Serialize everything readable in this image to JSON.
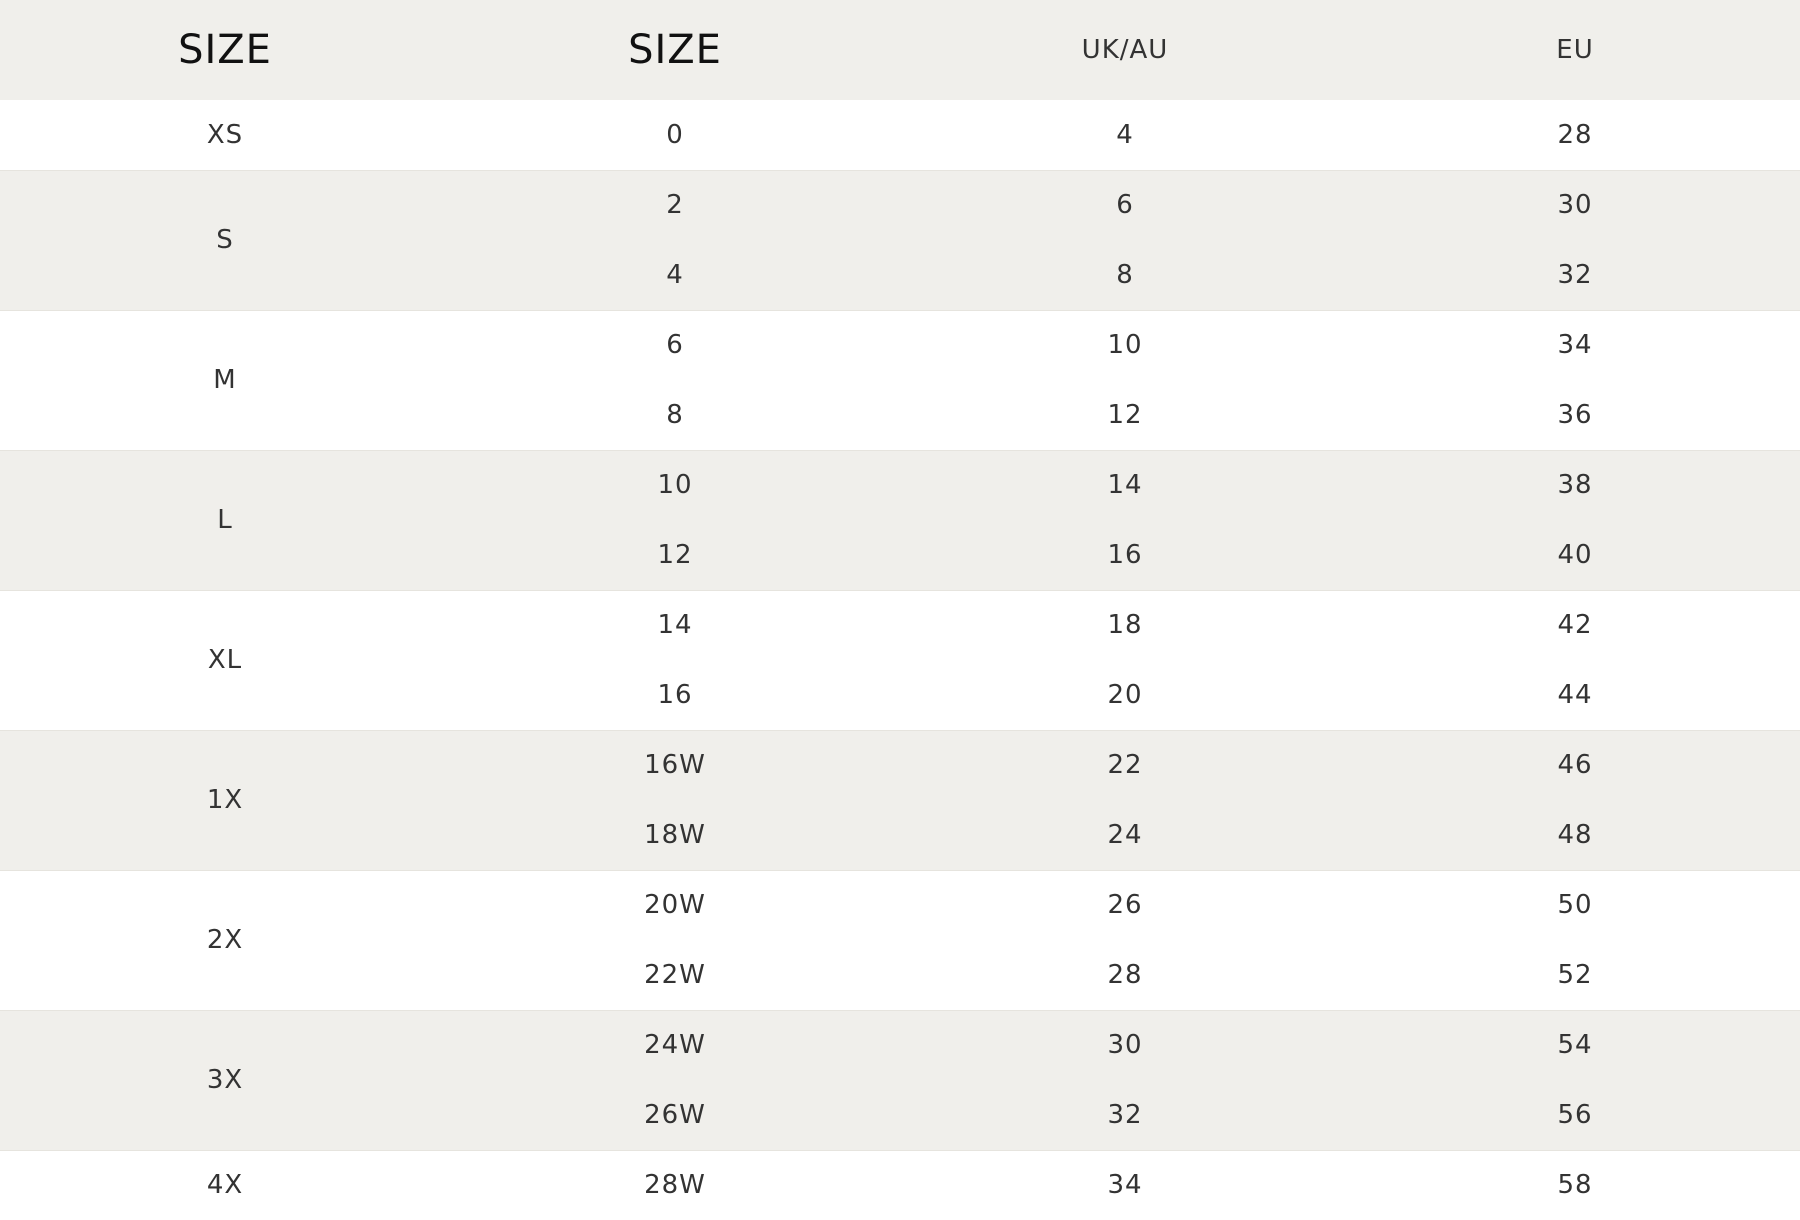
{
  "headers": [
    "SIZE",
    "SIZE",
    "UK/AU",
    "EU"
  ],
  "groups": [
    {
      "size": "XS",
      "rows": [
        [
          "0",
          "4",
          "28"
        ]
      ]
    },
    {
      "size": "S",
      "rows": [
        [
          "2",
          "6",
          "30"
        ],
        [
          "4",
          "8",
          "32"
        ]
      ]
    },
    {
      "size": "M",
      "rows": [
        [
          "6",
          "10",
          "34"
        ],
        [
          "8",
          "12",
          "36"
        ]
      ]
    },
    {
      "size": "L",
      "rows": [
        [
          "10",
          "14",
          "38"
        ],
        [
          "12",
          "16",
          "40"
        ]
      ]
    },
    {
      "size": "XL",
      "rows": [
        [
          "14",
          "18",
          "42"
        ],
        [
          "16",
          "20",
          "44"
        ]
      ]
    },
    {
      "size": "1X",
      "rows": [
        [
          "16W",
          "22",
          "46"
        ],
        [
          "18W",
          "24",
          "48"
        ]
      ]
    },
    {
      "size": "2X",
      "rows": [
        [
          "20W",
          "26",
          "50"
        ],
        [
          "22W",
          "28",
          "52"
        ]
      ]
    },
    {
      "size": "3X",
      "rows": [
        [
          "24W",
          "30",
          "54"
        ],
        [
          "26W",
          "32",
          "56"
        ]
      ]
    },
    {
      "size": "4X",
      "rows": [
        [
          "28W",
          "34",
          "58"
        ]
      ]
    }
  ],
  "colors": {
    "header_bg": "#f0efeb",
    "stripe_bg": "#f0efeb",
    "row_bg": "#ffffff"
  }
}
